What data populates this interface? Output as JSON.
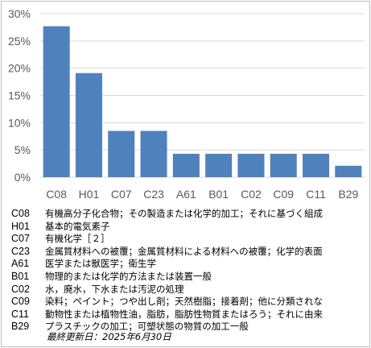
{
  "chart_data": {
    "type": "bar",
    "categories": [
      "C08",
      "H01",
      "C07",
      "C23",
      "A61",
      "B01",
      "C02",
      "C09",
      "C11",
      "B29"
    ],
    "values": [
      27.7,
      19.1,
      8.5,
      8.5,
      4.3,
      4.3,
      4.3,
      4.3,
      4.3,
      2.1
    ],
    "ylim": [
      0,
      30
    ],
    "yticks": [
      0,
      5,
      10,
      15,
      20,
      25,
      30
    ],
    "ytick_labels": [
      "0%",
      "5%",
      "10%",
      "15%",
      "20%",
      "25%",
      "30%"
    ],
    "grid": true,
    "bar_color": "#4f81bd",
    "grid_color": "#d9d9d9"
  },
  "legend": [
    {
      "code": "C08",
      "desc": "有機高分子化合物；その製造または化学的加工；それに基づく組成"
    },
    {
      "code": "H01",
      "desc": "基本的電気素子"
    },
    {
      "code": "C07",
      "desc": "有機化学［２］"
    },
    {
      "code": "C23",
      "desc": "金属質材料への被覆；金属質材料による材料への被覆；化学的表面"
    },
    {
      "code": "A61",
      "desc": "医学または獣医学；衛生学"
    },
    {
      "code": "B01",
      "desc": "物理的または化学的方法または装置一般"
    },
    {
      "code": "C02",
      "desc": "水，廃水，下水または汚泥の処理"
    },
    {
      "code": "C09",
      "desc": "染料；ペイント；つや出し剤；天然樹脂；接着剤；他に分類されな"
    },
    {
      "code": "C11",
      "desc": "動物性または植物性油，脂肪，脂肪性物質またはろう；それに由来"
    },
    {
      "code": "B29",
      "desc": "プラスチックの加工；可塑状態の物質の加工一般"
    }
  ],
  "updated": "最終更新日：2025年6月30日"
}
